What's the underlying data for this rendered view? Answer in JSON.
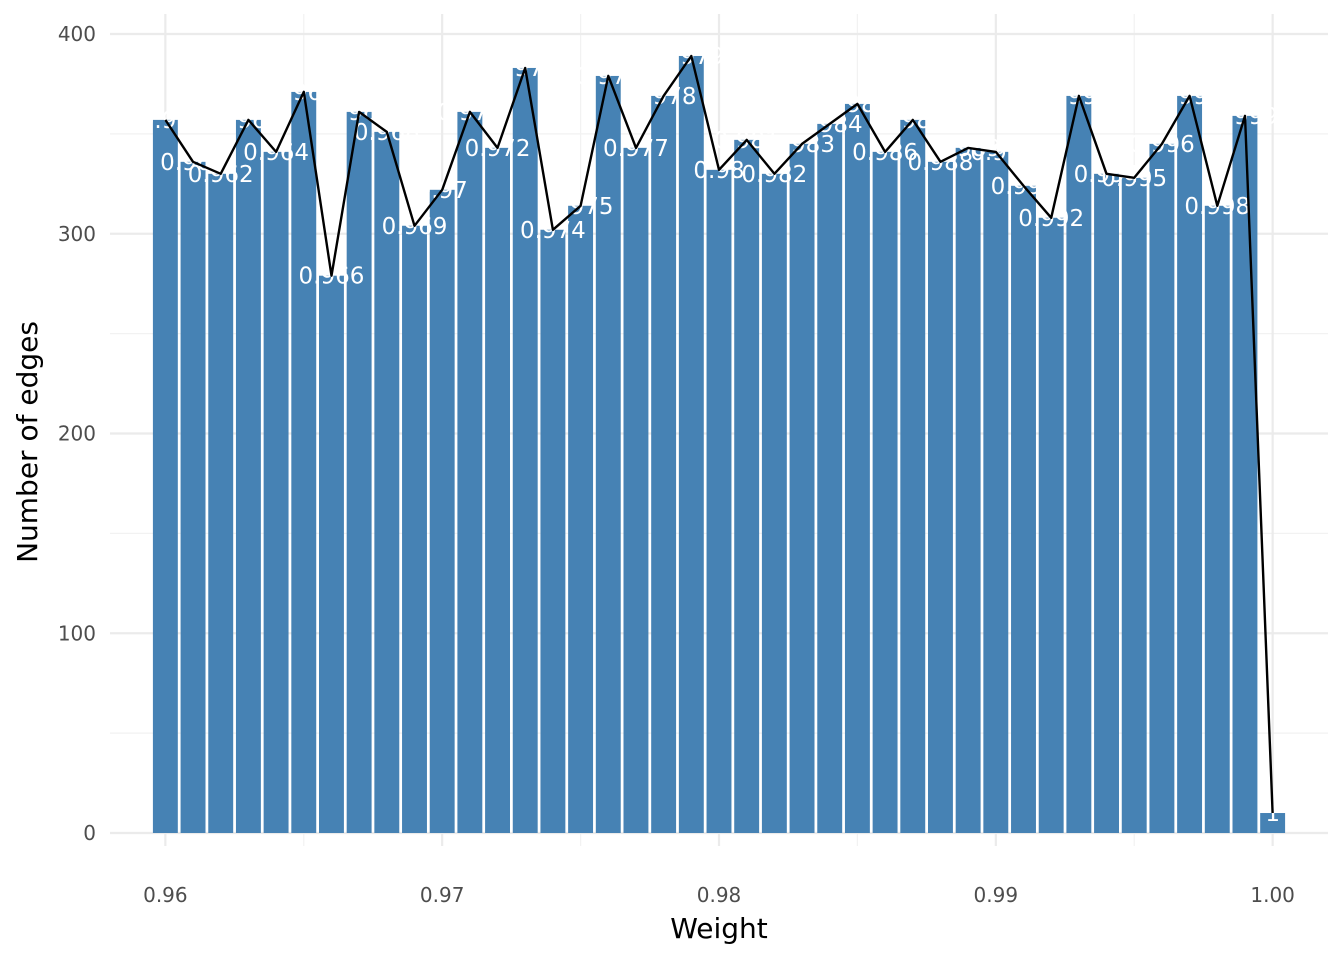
{
  "chart_data": {
    "type": "bar",
    "xlabel": "Weight",
    "ylabel": "Number of edges",
    "xlim": [
      0.958,
      1.002
    ],
    "ylim": [
      0,
      400
    ],
    "x_ticks": [
      "0.96",
      "0.97",
      "0.98",
      "0.99",
      "1.00"
    ],
    "y_ticks": [
      "0",
      "100",
      "200",
      "300",
      "400"
    ],
    "grid": true,
    "legend": "none",
    "bar_color": "#4682B4",
    "line_color": "#000000",
    "x": [
      0.96,
      0.961,
      0.962,
      0.963,
      0.964,
      0.965,
      0.966,
      0.967,
      0.968,
      0.969,
      0.97,
      0.971,
      0.972,
      0.973,
      0.974,
      0.975,
      0.976,
      0.977,
      0.978,
      0.979,
      0.98,
      0.981,
      0.982,
      0.983,
      0.984,
      0.985,
      0.986,
      0.987,
      0.988,
      0.989,
      0.99,
      0.991,
      0.992,
      0.993,
      0.994,
      0.995,
      0.996,
      0.997,
      0.998,
      0.999,
      1.0
    ],
    "values": [
      357,
      336,
      330,
      357,
      341,
      371,
      279,
      361,
      351,
      304,
      322,
      361,
      343,
      383,
      302,
      314,
      379,
      343,
      369,
      389,
      332,
      347,
      330,
      345,
      355,
      365,
      341,
      357,
      336,
      343,
      341,
      324,
      308,
      369,
      330,
      328,
      345,
      369,
      314,
      359,
      10
    ],
    "data_labels": [
      "0.96",
      "0.961",
      "0.962",
      "0.963",
      "0.964",
      "0.965",
      "0.966",
      "0.967",
      "0.968",
      "0.969",
      "0.97",
      "0.971",
      "0.972",
      "0.973",
      "0.974",
      "0.975",
      "0.976",
      "0.977",
      "0.978",
      "0.979",
      "0.98",
      "0.981",
      "0.982",
      "0.983",
      "0.984",
      "0.985",
      "0.986",
      "0.987",
      "0.988",
      "0.989",
      "0.99",
      "0.991",
      "0.992",
      "0.993",
      "0.994",
      "0.995",
      "0.996",
      "0.997",
      "0.998",
      "0.999",
      "1"
    ]
  }
}
